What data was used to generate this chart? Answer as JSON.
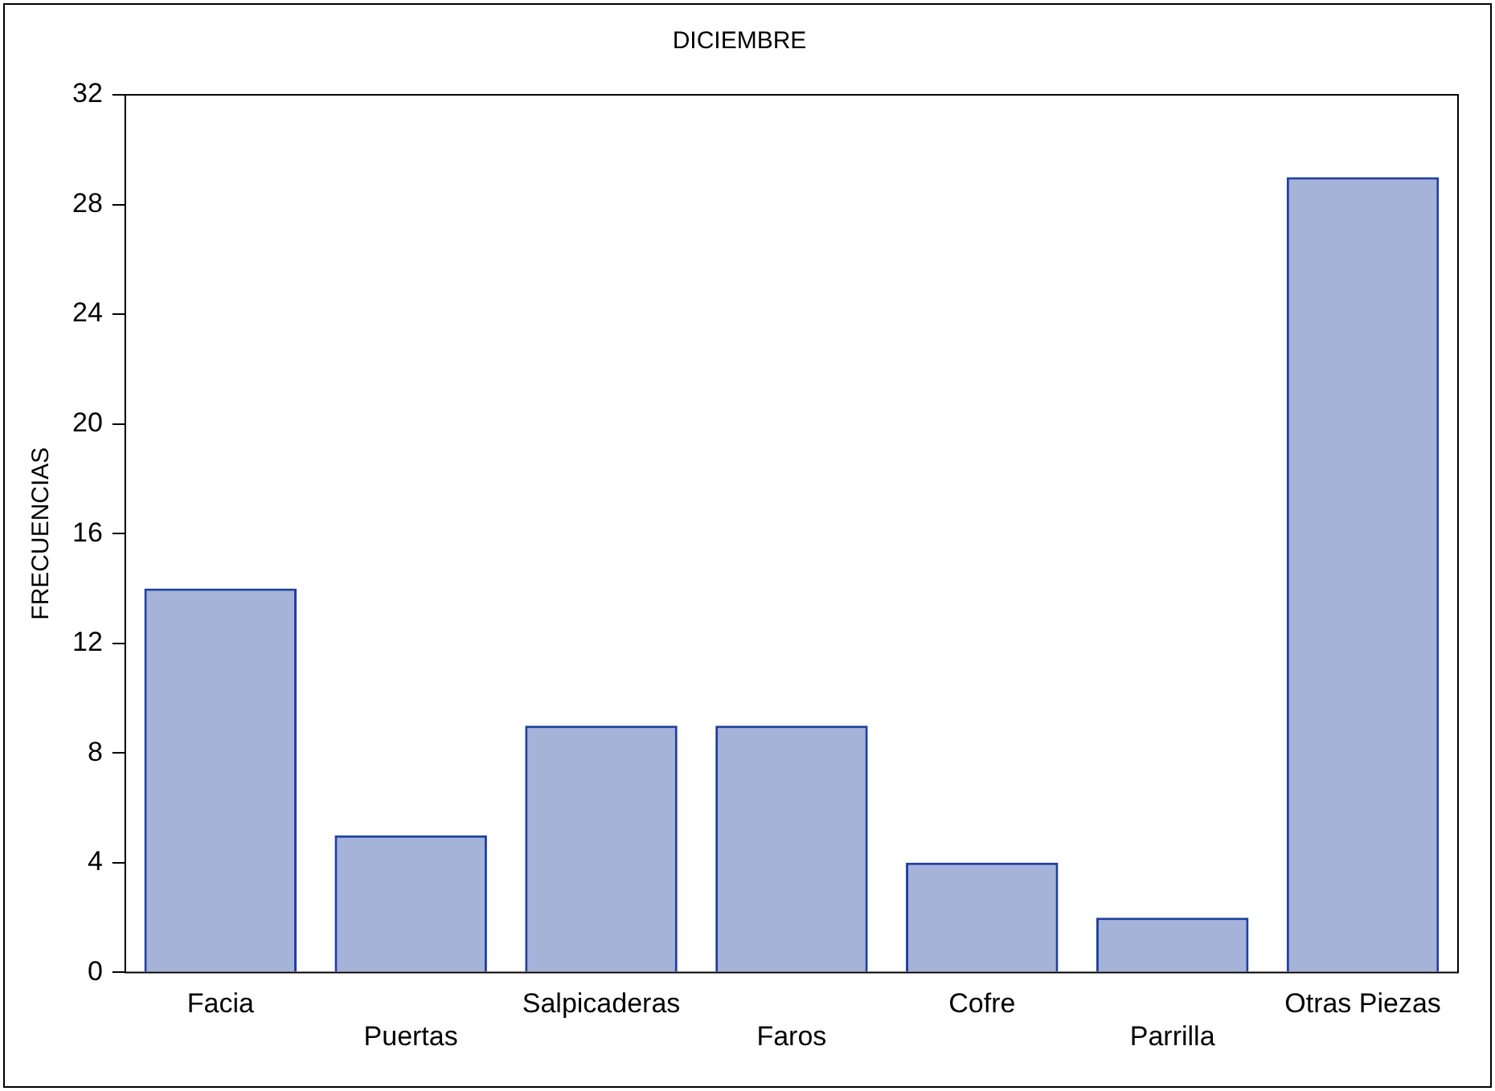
{
  "chart_data": {
    "type": "bar",
    "title": "DICIEMBRE",
    "ylabel": "FRECUENCIAS",
    "categories": [
      "Facia",
      "Puertas",
      "Salpicaderas",
      "Faros",
      "Cofre",
      "Parrilla",
      "Otras Piezas"
    ],
    "values": [
      14,
      5,
      9,
      9,
      4,
      2,
      29
    ],
    "color": "#2040a0",
    "ylim": [
      0,
      32
    ],
    "yticks": [
      0,
      4,
      8,
      12,
      16,
      20,
      24,
      28,
      32
    ],
    "grid": false
  }
}
